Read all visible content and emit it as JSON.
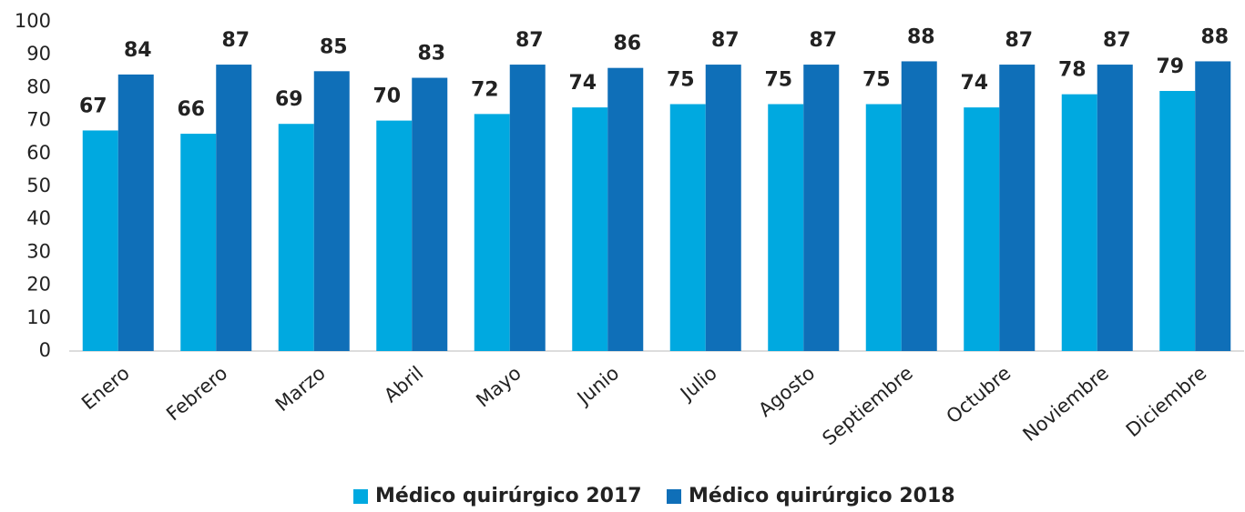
{
  "chart_data": {
    "type": "bar",
    "categories": [
      "Enero",
      "Febrero",
      "Marzo",
      "Abril",
      "Mayo",
      "Junio",
      "Julio",
      "Agosto",
      "Septiembre",
      "Octubre",
      "Noviembre",
      "Diciembre"
    ],
    "series": [
      {
        "name": "Médico quirúrgico 2017",
        "color": "#00a9e0",
        "values": [
          67,
          66,
          69,
          70,
          72,
          74,
          75,
          75,
          75,
          74,
          78,
          79
        ]
      },
      {
        "name": "Médico quirúrgico 2018",
        "color": "#0f6fb8",
        "values": [
          84,
          87,
          85,
          83,
          87,
          86,
          87,
          87,
          88,
          87,
          87,
          88
        ]
      }
    ],
    "ylim": [
      0,
      100
    ],
    "yticks": [
      0,
      10,
      20,
      30,
      40,
      50,
      60,
      70,
      80,
      90,
      100
    ],
    "grid": false,
    "legend": "bottom"
  }
}
